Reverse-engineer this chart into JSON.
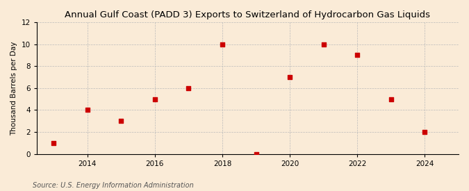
{
  "title": "Annual Gulf Coast (PADD 3) Exports to Switzerland of Hydrocarbon Gas Liquids",
  "ylabel": "Thousand Barrels per Day",
  "source": "Source: U.S. Energy Information Administration",
  "background_color": "#faebd7",
  "x_values": [
    2013,
    2014,
    2015,
    2016,
    2017,
    2018,
    2019,
    2020,
    2021,
    2022,
    2023,
    2024
  ],
  "y_values": [
    1,
    4,
    3,
    5,
    6,
    10,
    0,
    7,
    10,
    9,
    5,
    2
  ],
  "marker_color": "#cc0000",
  "marker": "s",
  "marker_size": 16,
  "xlim": [
    2012.5,
    2025
  ],
  "ylim": [
    0,
    12
  ],
  "yticks": [
    0,
    2,
    4,
    6,
    8,
    10,
    12
  ],
  "xticks": [
    2014,
    2016,
    2018,
    2020,
    2022,
    2024
  ],
  "grid_color": "#bbbbbb",
  "grid_style": "--",
  "title_fontsize": 9.5,
  "label_fontsize": 7.5,
  "tick_fontsize": 7.5,
  "source_fontsize": 7
}
